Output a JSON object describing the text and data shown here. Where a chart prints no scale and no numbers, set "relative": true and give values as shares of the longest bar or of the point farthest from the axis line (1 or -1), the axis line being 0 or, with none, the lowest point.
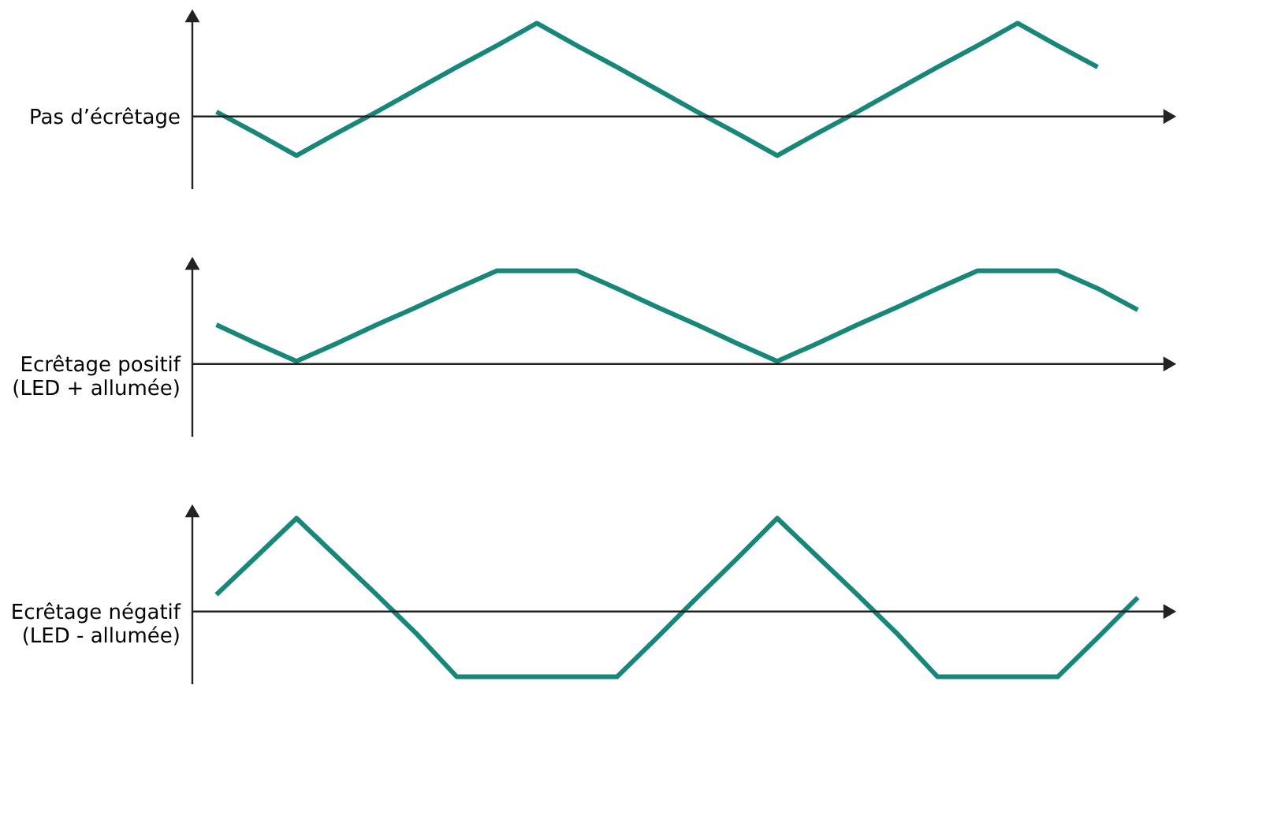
{
  "chart_data": [
    {
      "type": "line",
      "relative": true,
      "ylabel": "Pas d’écrêtage",
      "categories": [
        null,
        null,
        null,
        null,
        null,
        null,
        null,
        null,
        null,
        null,
        null,
        null,
        null,
        null,
        null,
        null,
        null,
        null,
        null,
        null,
        null,
        null,
        null,
        null
      ],
      "series": [
        {
          "color": "#17877a",
          "values": [
            0.05,
            -0.18,
            -0.42,
            -0.18,
            0.05,
            0.29,
            0.53,
            0.76,
            1.0,
            0.76,
            0.53,
            0.29,
            0.05,
            -0.18,
            -0.42,
            -0.18,
            0.05,
            0.29,
            0.53,
            0.76,
            1.0,
            0.76,
            0.53,
            null
          ]
        }
      ],
      "tick_labels": false,
      "grid": false,
      "legend": false,
      "marker": "none",
      "line_style": "solid"
    },
    {
      "type": "line",
      "relative": true,
      "ylabel": "Ecrêtage positif\n(LED + allumée)",
      "categories": [
        null,
        null,
        null,
        null,
        null,
        null,
        null,
        null,
        null,
        null,
        null,
        null,
        null,
        null,
        null,
        null,
        null,
        null,
        null,
        null,
        null,
        null,
        null,
        null
      ],
      "series": [
        {
          "color": "#17877a",
          "values": [
            0.42,
            0.22,
            0.03,
            0.22,
            0.42,
            0.61,
            0.81,
            1.0,
            1.0,
            1.0,
            0.81,
            0.61,
            0.42,
            0.22,
            0.03,
            0.22,
            0.42,
            0.61,
            0.81,
            1.0,
            1.0,
            1.0,
            0.81,
            0.58
          ]
        }
      ],
      "tick_labels": false,
      "grid": false,
      "legend": false,
      "marker": "none",
      "line_style": "solid"
    },
    {
      "type": "line",
      "relative": true,
      "ylabel": "Ecrêtage négatif\n(LED - allumée)",
      "categories": [
        null,
        null,
        null,
        null,
        null,
        null,
        null,
        null,
        null,
        null,
        null,
        null,
        null,
        null,
        null,
        null,
        null,
        null,
        null,
        null,
        null,
        null,
        null,
        null
      ],
      "series": [
        {
          "color": "#17877a",
          "values": [
            0.18,
            0.59,
            1.0,
            0.59,
            0.18,
            -0.24,
            -0.7,
            -0.7,
            -0.7,
            -0.7,
            -0.7,
            -0.28,
            0.15,
            0.57,
            1.0,
            0.59,
            0.18,
            -0.24,
            -0.7,
            -0.7,
            -0.7,
            -0.7,
            -0.28,
            0.15
          ]
        }
      ],
      "tick_labels": false,
      "grid": false,
      "legend": false,
      "marker": "none",
      "line_style": "solid"
    }
  ]
}
